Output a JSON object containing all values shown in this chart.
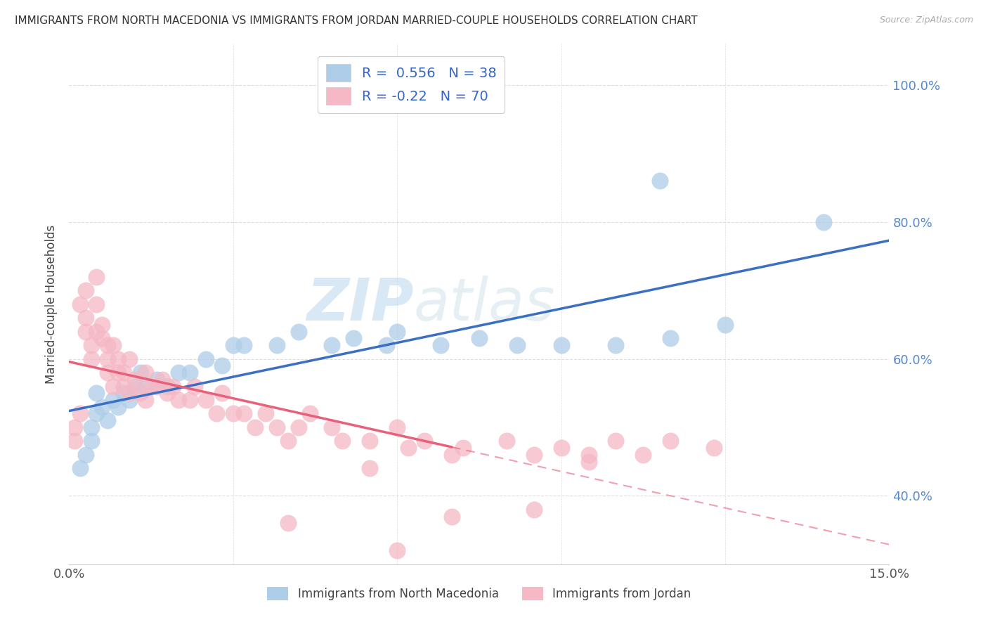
{
  "title": "IMMIGRANTS FROM NORTH MACEDONIA VS IMMIGRANTS FROM JORDAN MARRIED-COUPLE HOUSEHOLDS CORRELATION CHART",
  "source": "Source: ZipAtlas.com",
  "ylabel": "Married-couple Households",
  "xlim": [
    0.0,
    0.15
  ],
  "ylim": [
    0.3,
    1.06
  ],
  "ytick_labels": [
    "40.0%",
    "60.0%",
    "80.0%",
    "100.0%"
  ],
  "yticks": [
    0.4,
    0.6,
    0.8,
    1.0
  ],
  "blue_color": "#AECDE8",
  "pink_color": "#F5B8C4",
  "blue_line_color": "#3A6FC4",
  "pink_line_color": "#E8607A",
  "blue_R": 0.556,
  "blue_N": 38,
  "pink_R": -0.22,
  "pink_N": 70,
  "legend_label_blue": "Immigrants from North Macedonia",
  "legend_label_pink": "Immigrants from Jordan",
  "watermark_zip": "ZIP",
  "watermark_atlas": "atlas",
  "background_color": "#FFFFFF",
  "grid_color": "#DDDDDD",
  "blue_scatter_x": [
    0.002,
    0.003,
    0.004,
    0.004,
    0.005,
    0.005,
    0.006,
    0.007,
    0.008,
    0.009,
    0.01,
    0.011,
    0.012,
    0.013,
    0.014,
    0.016,
    0.018,
    0.02,
    0.022,
    0.025,
    0.028,
    0.03,
    0.032,
    0.038,
    0.042,
    0.048,
    0.052,
    0.058,
    0.06,
    0.068,
    0.075,
    0.082,
    0.09,
    0.1,
    0.108,
    0.11,
    0.12,
    0.138
  ],
  "blue_scatter_y": [
    0.44,
    0.46,
    0.48,
    0.5,
    0.52,
    0.55,
    0.53,
    0.51,
    0.54,
    0.53,
    0.55,
    0.54,
    0.56,
    0.58,
    0.56,
    0.57,
    0.56,
    0.58,
    0.58,
    0.6,
    0.59,
    0.62,
    0.62,
    0.62,
    0.64,
    0.62,
    0.63,
    0.62,
    0.64,
    0.62,
    0.63,
    0.62,
    0.62,
    0.62,
    0.86,
    0.63,
    0.65,
    0.8
  ],
  "pink_scatter_x": [
    0.001,
    0.001,
    0.002,
    0.002,
    0.003,
    0.003,
    0.003,
    0.004,
    0.004,
    0.005,
    0.005,
    0.005,
    0.006,
    0.006,
    0.007,
    0.007,
    0.007,
    0.008,
    0.008,
    0.009,
    0.009,
    0.01,
    0.01,
    0.011,
    0.011,
    0.012,
    0.013,
    0.014,
    0.014,
    0.015,
    0.016,
    0.017,
    0.018,
    0.019,
    0.02,
    0.022,
    0.023,
    0.025,
    0.027,
    0.028,
    0.03,
    0.032,
    0.034,
    0.036,
    0.038,
    0.04,
    0.042,
    0.044,
    0.048,
    0.05,
    0.055,
    0.06,
    0.062,
    0.065,
    0.07,
    0.072,
    0.08,
    0.085,
    0.09,
    0.095,
    0.1,
    0.105,
    0.11,
    0.118,
    0.055,
    0.07,
    0.085,
    0.095,
    0.04,
    0.06
  ],
  "pink_scatter_y": [
    0.48,
    0.5,
    0.52,
    0.68,
    0.7,
    0.66,
    0.64,
    0.62,
    0.6,
    0.68,
    0.72,
    0.64,
    0.65,
    0.63,
    0.58,
    0.6,
    0.62,
    0.56,
    0.62,
    0.58,
    0.6,
    0.56,
    0.58,
    0.55,
    0.6,
    0.57,
    0.55,
    0.58,
    0.54,
    0.56,
    0.56,
    0.57,
    0.55,
    0.56,
    0.54,
    0.54,
    0.56,
    0.54,
    0.52,
    0.55,
    0.52,
    0.52,
    0.5,
    0.52,
    0.5,
    0.48,
    0.5,
    0.52,
    0.5,
    0.48,
    0.48,
    0.5,
    0.47,
    0.48,
    0.46,
    0.47,
    0.48,
    0.46,
    0.47,
    0.46,
    0.48,
    0.46,
    0.48,
    0.47,
    0.44,
    0.37,
    0.38,
    0.45,
    0.36,
    0.32
  ]
}
